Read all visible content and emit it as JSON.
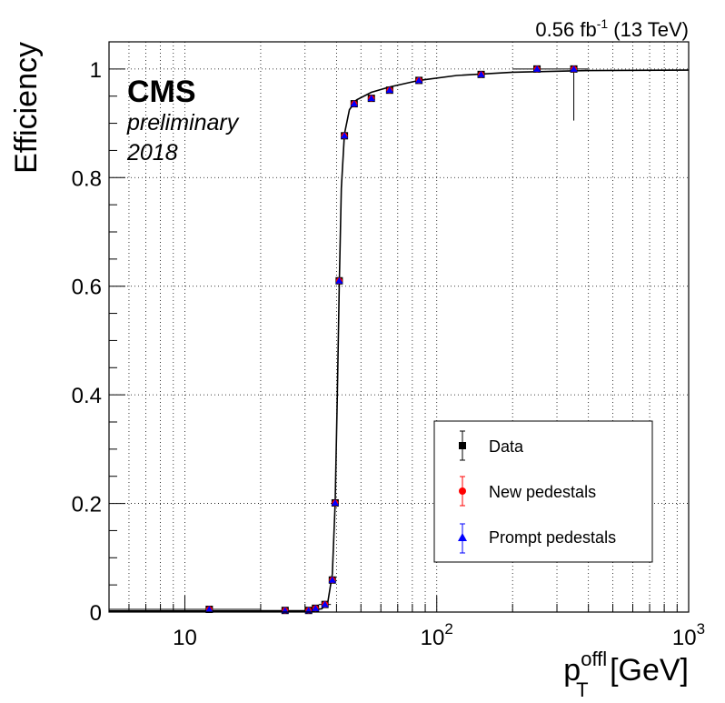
{
  "header": {
    "lumi_value": "0.56 fb",
    "lumi_exp": "-1",
    "energy": " (13 TeV)"
  },
  "label": {
    "experiment": "CMS",
    "status": "preliminary",
    "year": "2018"
  },
  "axes": {
    "ylabel": "Efficiency",
    "xlabel_base": "p",
    "xlabel_sup": "offl",
    "xlabel_sub": "T",
    "xlabel_unit": " [GeV]"
  },
  "chart_data": {
    "type": "scatter",
    "xscale": "log",
    "xlim": [
      5,
      1000
    ],
    "ylim": [
      0,
      1.05
    ],
    "grid": true,
    "legend_position": "bottom-right",
    "xticks": [
      {
        "value": 10,
        "label": "10"
      },
      {
        "value": 100,
        "label": "10",
        "exp": "2"
      },
      {
        "value": 1000,
        "label": "10",
        "exp": "3"
      }
    ],
    "yticks": [
      {
        "value": 0,
        "label": "0"
      },
      {
        "value": 0.2,
        "label": "0.2"
      },
      {
        "value": 0.4,
        "label": "0.4"
      },
      {
        "value": 0.6,
        "label": "0.6"
      },
      {
        "value": 0.8,
        "label": "0.8"
      },
      {
        "value": 1,
        "label": "1"
      }
    ],
    "series": [
      {
        "name": "Data",
        "marker": "square",
        "color": "#000000",
        "points": [
          {
            "x": 12.5,
            "y": 0.005,
            "xlo": 5,
            "xhi": 20
          },
          {
            "x": 25,
            "y": 0.003,
            "xlo": 20,
            "xhi": 30
          },
          {
            "x": 31,
            "y": 0.003
          },
          {
            "x": 33,
            "y": 0.007
          },
          {
            "x": 36,
            "y": 0.014,
            "xlo": 34,
            "xhi": 38
          },
          {
            "x": 38.5,
            "y": 0.059
          },
          {
            "x": 39.5,
            "y": 0.201
          },
          {
            "x": 41,
            "y": 0.61
          },
          {
            "x": 43,
            "y": 0.877
          },
          {
            "x": 47,
            "y": 0.936
          },
          {
            "x": 55,
            "y": 0.946
          },
          {
            "x": 65,
            "y": 0.961
          },
          {
            "x": 85,
            "y": 0.979
          },
          {
            "x": 150,
            "y": 0.99
          },
          {
            "x": 250,
            "y": 1.0,
            "xlo": 200,
            "xhi": 300
          },
          {
            "x": 350,
            "y": 1.0,
            "xlo": 300,
            "xhi": 400,
            "ylo": 0.905
          }
        ]
      },
      {
        "name": "New pedestals",
        "marker": "circle",
        "color": "#ff0000",
        "points": [
          {
            "x": 12.5,
            "y": 0.005
          },
          {
            "x": 25,
            "y": 0.003
          },
          {
            "x": 31,
            "y": 0.003
          },
          {
            "x": 33,
            "y": 0.007
          },
          {
            "x": 36,
            "y": 0.014
          },
          {
            "x": 38.5,
            "y": 0.059
          },
          {
            "x": 39.5,
            "y": 0.201
          },
          {
            "x": 41,
            "y": 0.61
          },
          {
            "x": 43,
            "y": 0.877
          },
          {
            "x": 47,
            "y": 0.936
          },
          {
            "x": 55,
            "y": 0.946
          },
          {
            "x": 65,
            "y": 0.961
          },
          {
            "x": 85,
            "y": 0.979
          },
          {
            "x": 150,
            "y": 0.99
          },
          {
            "x": 250,
            "y": 1.0
          },
          {
            "x": 350,
            "y": 1.0
          }
        ]
      },
      {
        "name": "Prompt pedestals",
        "marker": "triangle",
        "color": "#0000ff",
        "points": [
          {
            "x": 12.5,
            "y": 0.005
          },
          {
            "x": 25,
            "y": 0.003
          },
          {
            "x": 31,
            "y": 0.003
          },
          {
            "x": 33,
            "y": 0.007
          },
          {
            "x": 36,
            "y": 0.014
          },
          {
            "x": 38.5,
            "y": 0.059
          },
          {
            "x": 39.5,
            "y": 0.201
          },
          {
            "x": 41,
            "y": 0.61
          },
          {
            "x": 43,
            "y": 0.877
          },
          {
            "x": 47,
            "y": 0.936
          },
          {
            "x": 55,
            "y": 0.946
          },
          {
            "x": 65,
            "y": 0.961
          },
          {
            "x": 85,
            "y": 0.979
          },
          {
            "x": 150,
            "y": 0.99
          },
          {
            "x": 250,
            "y": 1.0
          },
          {
            "x": 350,
            "y": 1.0
          }
        ]
      }
    ],
    "fit_curve": {
      "color": "#000000",
      "points": [
        {
          "x": 5,
          "y": 0.002
        },
        {
          "x": 30,
          "y": 0.002
        },
        {
          "x": 35,
          "y": 0.006
        },
        {
          "x": 37,
          "y": 0.02
        },
        {
          "x": 38.5,
          "y": 0.07
        },
        {
          "x": 39.5,
          "y": 0.2
        },
        {
          "x": 40.3,
          "y": 0.4
        },
        {
          "x": 41,
          "y": 0.6
        },
        {
          "x": 41.8,
          "y": 0.78
        },
        {
          "x": 43,
          "y": 0.88
        },
        {
          "x": 45,
          "y": 0.925
        },
        {
          "x": 48,
          "y": 0.943
        },
        {
          "x": 55,
          "y": 0.957
        },
        {
          "x": 65,
          "y": 0.967
        },
        {
          "x": 85,
          "y": 0.979
        },
        {
          "x": 120,
          "y": 0.988
        },
        {
          "x": 200,
          "y": 0.994
        },
        {
          "x": 400,
          "y": 0.997
        },
        {
          "x": 1000,
          "y": 0.998
        }
      ]
    }
  }
}
